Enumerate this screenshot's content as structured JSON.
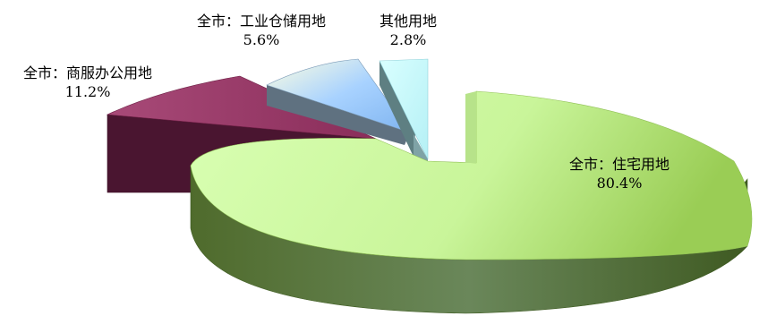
{
  "chart_data": {
    "type": "pie",
    "title": "",
    "slices": [
      {
        "label": "全市：住宅用地",
        "value": 80.4,
        "value_label": "80.4%",
        "color": "#ccff99"
      },
      {
        "label": "全市：商服办公用地",
        "value": 11.2,
        "value_label": "11.2%",
        "color": "#993366"
      },
      {
        "label": "全市：工业仓储用地",
        "value": 5.6,
        "value_label": "5.6%",
        "color": "#99ccff"
      },
      {
        "label": "其他用地",
        "value": 2.8,
        "value_label": "2.8%",
        "color": "#ccffff"
      }
    ],
    "style": "3d-exploded-pie",
    "legend": "none"
  }
}
